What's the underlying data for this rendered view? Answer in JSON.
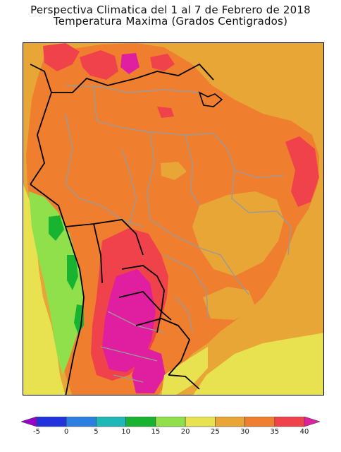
{
  "map": {
    "title_line1": "Perspectiva Climatica del 1 al 7 de Febrero de 2018",
    "title_line2": "Temperatura Maxima (Grados Centigrados)"
  },
  "colorbar": {
    "min": -10,
    "max": 45,
    "ticks": [
      "-5",
      "0",
      "5",
      "10",
      "15",
      "20",
      "25",
      "30",
      "35",
      "40"
    ],
    "bins": [
      {
        "from": -10,
        "to": -5,
        "color": "#9900cc"
      },
      {
        "from": -5,
        "to": 0,
        "color": "#2233dd"
      },
      {
        "from": 0,
        "to": 5,
        "color": "#2a7fe0"
      },
      {
        "from": 5,
        "to": 10,
        "color": "#1fb7b7"
      },
      {
        "from": 10,
        "to": 15,
        "color": "#18b330"
      },
      {
        "from": 15,
        "to": 20,
        "color": "#8fe04a"
      },
      {
        "from": 20,
        "to": 25,
        "color": "#e8e250"
      },
      {
        "from": 25,
        "to": 30,
        "color": "#e7a636"
      },
      {
        "from": 30,
        "to": 35,
        "color": "#ef7f2f"
      },
      {
        "from": 35,
        "to": 40,
        "color": "#f0424a"
      },
      {
        "from": 40,
        "to": 45,
        "color": "#e01fa0"
      }
    ]
  },
  "legend_colors": {
    "ocean_fill": "#e7a636",
    "land_dominant": "#ef7f2f",
    "border_country": "#000000",
    "border_state": "#9a9a9a"
  }
}
